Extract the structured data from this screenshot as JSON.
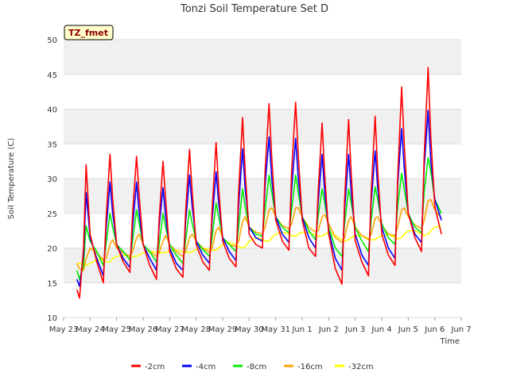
{
  "chart_data": {
    "type": "line",
    "title": "Tonzi Soil Temperature Set D",
    "xlabel": "Time",
    "ylabel": "Soil Temperature (C)",
    "badge": "TZ_fmet",
    "ylim": [
      10,
      50
    ],
    "yticks": [
      10,
      15,
      20,
      25,
      30,
      35,
      40,
      45,
      50
    ],
    "xlim": [
      0,
      15
    ],
    "xticks": [
      "May 23",
      "May 24",
      "May 25",
      "May 26",
      "May 27",
      "May 28",
      "May 29",
      "May 30",
      "May 31",
      "Jun 1",
      "Jun 2",
      "Jun 3",
      "Jun 4",
      "Jun 5",
      "Jun 6",
      "Jun 7"
    ],
    "x_unit": "days since May 23",
    "series_x": [
      0.5,
      0.6,
      0.75,
      0.85,
      1.0,
      1.25,
      1.5,
      1.6,
      1.75,
      1.85,
      2.0,
      2.25,
      2.5,
      2.6,
      2.75,
      2.85,
      3.0,
      3.25,
      3.5,
      3.6,
      3.75,
      3.85,
      4.0,
      4.25,
      4.5,
      4.6,
      4.75,
      4.85,
      5.0,
      5.25,
      5.5,
      5.6,
      5.75,
      5.85,
      6.0,
      6.25,
      6.5,
      6.6,
      6.75,
      6.85,
      7.0,
      7.25,
      7.5,
      7.6,
      7.75,
      7.85,
      8.0,
      8.25,
      8.5,
      8.6,
      8.75,
      8.85,
      9.0,
      9.25,
      9.5,
      9.6,
      9.75,
      9.85,
      10.0,
      10.25,
      10.5,
      10.6,
      10.75,
      10.85,
      11.0,
      11.25,
      11.5,
      11.6,
      11.75,
      11.85,
      12.0,
      12.25,
      12.5,
      12.6,
      12.75,
      12.85,
      13.0,
      13.25,
      13.5,
      13.6,
      13.75,
      13.85,
      14.0,
      14.25
    ],
    "series": [
      {
        "name": "-2cm",
        "color": "#ff0000",
        "values": [
          14.0,
          12.8,
          20.0,
          32.0,
          22.0,
          18.0,
          15.0,
          24.0,
          33.5,
          27.0,
          20.5,
          18.0,
          16.5,
          25.0,
          33.2,
          27.5,
          20.5,
          17.5,
          15.5,
          24.0,
          32.5,
          27.0,
          19.5,
          17.0,
          15.8,
          25.0,
          34.2,
          28.0,
          20.5,
          18.0,
          16.8,
          25.5,
          35.2,
          28.5,
          21.0,
          18.5,
          17.3,
          28.0,
          38.8,
          31.0,
          22.0,
          20.5,
          20.0,
          31.0,
          40.8,
          33.0,
          24.0,
          21.0,
          19.7,
          31.0,
          41.0,
          33.5,
          24.0,
          20.0,
          18.8,
          28.0,
          38.0,
          30.5,
          22.0,
          17.0,
          14.8,
          27.0,
          38.5,
          30.5,
          21.0,
          18.0,
          16.0,
          28.0,
          39.0,
          31.0,
          22.0,
          19.0,
          17.5,
          30.0,
          43.2,
          35.0,
          25.0,
          21.5,
          19.5,
          33.0,
          46.0,
          36.0,
          26.0,
          22.0
        ]
      },
      {
        "name": "-4cm",
        "color": "#0000ff",
        "values": [
          15.5,
          14.5,
          19.0,
          28.0,
          21.5,
          18.5,
          16.0,
          22.5,
          29.5,
          25.0,
          20.5,
          18.5,
          17.2,
          23.0,
          29.5,
          25.0,
          20.5,
          18.5,
          16.8,
          23.0,
          28.7,
          24.5,
          20.0,
          17.8,
          16.8,
          23.5,
          30.5,
          26.0,
          21.0,
          19.0,
          17.8,
          24.0,
          31.0,
          26.5,
          21.5,
          19.5,
          18.2,
          26.0,
          34.3,
          28.5,
          23.0,
          21.5,
          21.0,
          29.0,
          36.0,
          30.0,
          24.5,
          22.0,
          20.8,
          28.5,
          35.8,
          30.0,
          24.5,
          21.5,
          20.0,
          26.5,
          33.5,
          28.0,
          22.5,
          18.5,
          16.8,
          25.5,
          33.5,
          28.0,
          22.0,
          19.0,
          17.5,
          26.5,
          34.0,
          28.5,
          23.0,
          20.0,
          18.5,
          29.0,
          37.2,
          31.5,
          25.0,
          22.0,
          20.8,
          31.5,
          39.8,
          32.5,
          27.0,
          24.0
        ]
      },
      {
        "name": "-8cm",
        "color": "#00ee00",
        "values": [
          16.8,
          15.5,
          17.5,
          23.2,
          21.0,
          19.5,
          17.5,
          20.5,
          25.0,
          23.0,
          20.5,
          19.5,
          18.3,
          21.0,
          25.5,
          23.5,
          20.5,
          19.5,
          18.0,
          20.5,
          25.0,
          23.0,
          20.5,
          19.0,
          17.8,
          21.0,
          25.5,
          23.5,
          21.0,
          19.8,
          18.8,
          21.5,
          26.5,
          24.5,
          21.5,
          20.5,
          19.5,
          23.0,
          28.5,
          26.0,
          23.0,
          22.0,
          21.7,
          25.5,
          30.5,
          28.0,
          24.5,
          23.0,
          22.2,
          25.5,
          30.5,
          28.0,
          24.5,
          22.5,
          21.2,
          24.5,
          28.5,
          26.5,
          23.0,
          20.0,
          18.8,
          23.5,
          28.5,
          26.5,
          23.0,
          21.0,
          19.5,
          24.0,
          28.8,
          27.0,
          23.5,
          21.5,
          20.5,
          26.0,
          30.8,
          28.5,
          25.0,
          23.0,
          22.2,
          28.0,
          33.0,
          31.0,
          27.0,
          25.0
        ]
      },
      {
        "name": "-16cm",
        "color": "#ffa500",
        "values": [
          17.8,
          17.0,
          16.8,
          18.5,
          20.0,
          19.3,
          18.3,
          18.5,
          20.5,
          21.2,
          20.0,
          19.3,
          18.8,
          19.5,
          21.5,
          22.0,
          20.5,
          19.5,
          18.8,
          19.3,
          21.0,
          21.8,
          20.5,
          19.5,
          18.8,
          19.5,
          21.5,
          22.0,
          21.0,
          20.0,
          19.4,
          20.0,
          22.5,
          23.0,
          21.5,
          20.5,
          20.2,
          21.0,
          23.8,
          24.5,
          23.0,
          22.3,
          22.0,
          23.0,
          25.5,
          25.8,
          24.5,
          23.2,
          22.8,
          23.5,
          25.8,
          25.8,
          24.5,
          23.0,
          22.3,
          22.5,
          24.5,
          24.8,
          23.5,
          21.5,
          20.8,
          21.5,
          24.0,
          24.5,
          23.0,
          21.8,
          21.2,
          22.0,
          24.3,
          24.5,
          23.3,
          22.0,
          21.8,
          23.0,
          25.5,
          25.8,
          24.5,
          23.3,
          22.8,
          24.0,
          26.8,
          27.0,
          25.5,
          24.3
        ]
      },
      {
        "name": "-32cm",
        "color": "#ffff00",
        "values": [
          17.8,
          17.8,
          17.6,
          17.5,
          17.8,
          18.3,
          18.3,
          18.0,
          18.0,
          18.5,
          18.8,
          19.0,
          18.8,
          18.8,
          18.8,
          19.0,
          19.3,
          19.5,
          19.4,
          19.3,
          19.3,
          19.4,
          19.6,
          19.7,
          19.5,
          19.4,
          19.4,
          19.5,
          19.8,
          20.0,
          19.8,
          19.7,
          19.7,
          20.0,
          20.5,
          20.8,
          20.5,
          20.2,
          20.0,
          20.2,
          21.0,
          21.5,
          21.3,
          21.0,
          21.0,
          21.5,
          22.0,
          22.3,
          22.0,
          21.8,
          21.7,
          22.0,
          22.3,
          22.2,
          21.9,
          21.7,
          21.7,
          22.0,
          22.2,
          21.8,
          21.2,
          21.0,
          21.2,
          21.5,
          21.8,
          21.8,
          21.4,
          21.2,
          21.2,
          21.5,
          21.8,
          22.0,
          21.5,
          21.3,
          21.5,
          22.0,
          22.5,
          22.5,
          22.0,
          21.8,
          22.0,
          22.5,
          23.0,
          23.2
        ]
      }
    ]
  }
}
